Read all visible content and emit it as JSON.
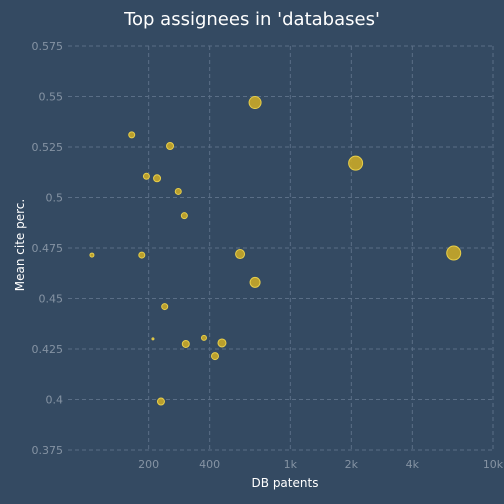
{
  "chart_data": {
    "type": "scatter",
    "title": "Top assignees in 'databases'",
    "xlabel": "DB patents",
    "ylabel": "Mean cite perc.",
    "x_scale": "log",
    "xlim": [
      80,
      10000
    ],
    "ylim": [
      0.375,
      0.575
    ],
    "x_ticks": [
      200,
      400,
      1000,
      2000,
      4000,
      10000
    ],
    "x_tick_labels": [
      "200",
      "400",
      "1k",
      "2k",
      "4k",
      "10k"
    ],
    "y_ticks": [
      0.375,
      0.4,
      0.425,
      0.45,
      0.475,
      0.5,
      0.525,
      0.55,
      0.575
    ],
    "y_tick_labels": [
      "0.375",
      "0.4",
      "0.425",
      "0.45",
      "0.475",
      "0.5",
      "0.525",
      "0.55",
      "0.575"
    ],
    "grid": true,
    "point_color": "#c9a928",
    "points": [
      {
        "x": 105,
        "y": 0.4715,
        "size": 2
      },
      {
        "x": 165,
        "y": 0.531,
        "size": 3
      },
      {
        "x": 185,
        "y": 0.4715,
        "size": 3
      },
      {
        "x": 195,
        "y": 0.5105,
        "size": 3
      },
      {
        "x": 210,
        "y": 0.43,
        "size": 1
      },
      {
        "x": 220,
        "y": 0.5095,
        "size": 3.5
      },
      {
        "x": 230,
        "y": 0.399,
        "size": 3.5
      },
      {
        "x": 240,
        "y": 0.446,
        "size": 3
      },
      {
        "x": 255,
        "y": 0.5255,
        "size": 3.5
      },
      {
        "x": 280,
        "y": 0.503,
        "size": 3
      },
      {
        "x": 300,
        "y": 0.491,
        "size": 3
      },
      {
        "x": 305,
        "y": 0.4275,
        "size": 3.5
      },
      {
        "x": 375,
        "y": 0.4305,
        "size": 2.5
      },
      {
        "x": 425,
        "y": 0.4215,
        "size": 3.5
      },
      {
        "x": 460,
        "y": 0.428,
        "size": 4
      },
      {
        "x": 565,
        "y": 0.472,
        "size": 4.5
      },
      {
        "x": 670,
        "y": 0.458,
        "size": 5
      },
      {
        "x": 670,
        "y": 0.547,
        "size": 6
      },
      {
        "x": 2100,
        "y": 0.517,
        "size": 7
      },
      {
        "x": 6400,
        "y": 0.4725,
        "size": 7
      }
    ]
  }
}
